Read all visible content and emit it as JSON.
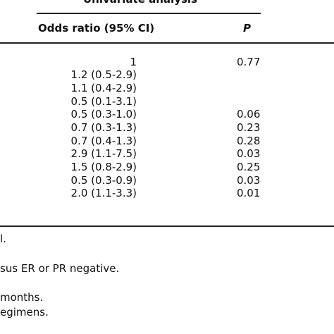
{
  "table": {
    "group_title": "Univariate analysis",
    "headers": {
      "odds_ratio": "Odds ratio (95% CI)",
      "p": "P"
    },
    "rows": [
      {
        "or": "1",
        "p": "0.77"
      },
      {
        "or": "1.2 (0.5-2.9)",
        "p": ""
      },
      {
        "or": "1.1 (0.4-2.9)",
        "p": ""
      },
      {
        "or": "0.5 (0.1-3.1)",
        "p": ""
      },
      {
        "or": "0.5 (0.3-1.0)",
        "p": "0.06"
      },
      {
        "or": "0.7 (0.3-1.3)",
        "p": "0.23"
      },
      {
        "or": "0.7 (0.4-1.3)",
        "p": "0.28"
      },
      {
        "or": "2.9 (1.1-7.5)",
        "p": "0.03"
      },
      {
        "or": "1.5 (0.8-2.9)",
        "p": "0.25"
      },
      {
        "or": "0.5 (0.3-0.9)",
        "p": "0.03"
      },
      {
        "or": "2.0 (1.1-3.3)",
        "p": "0.01"
      }
    ]
  },
  "footnotes": [
    "l.",
    "sus ER or PR negative.",
    "months.",
    "egimens."
  ]
}
